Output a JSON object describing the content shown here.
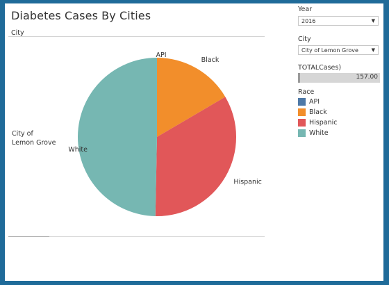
{
  "title": "Diabetes Cases By Cities",
  "column_header": "City",
  "row_label_line1": "City of",
  "row_label_line2": "Lemon Grove",
  "filters": {
    "year": {
      "label": "Year",
      "value": "2016"
    },
    "city": {
      "label": "City",
      "value": "City of Lemon Grove"
    },
    "total": {
      "label": "TOTALCases)",
      "value": "157.00"
    },
    "race": {
      "label": "Race"
    }
  },
  "colors": {
    "API": "#4e79a7",
    "Black": "#f28e2b",
    "Hispanic": "#e15759",
    "White": "#76b7b2"
  },
  "chart_data": {
    "type": "pie",
    "title": "Diabetes Cases By Cities",
    "categories": [
      "API",
      "Black",
      "Hispanic",
      "White"
    ],
    "values": [
      0,
      26,
      53,
      78
    ],
    "total": 157,
    "legend": [
      "API",
      "Black",
      "Hispanic",
      "White"
    ],
    "legend_position": "right"
  }
}
